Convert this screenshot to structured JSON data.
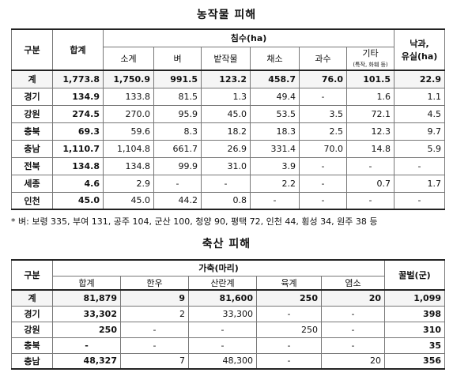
{
  "crop": {
    "title": "농작물 피해",
    "headers": {
      "region": "구분",
      "total": "합계",
      "flood": "침수(ha)",
      "subtotal": "소계",
      "rice": "벼",
      "field": "밭작물",
      "vegetable": "채소",
      "fruit": "과수",
      "etc": "기타",
      "etc_sub": "(특작, 화훼 등)",
      "fall": "낙과,",
      "fall2": "유실(ha)"
    },
    "rows": [
      {
        "region": "계",
        "total": "1,773.8",
        "subtotal": "1,750.9",
        "rice": "991.5",
        "field": "123.2",
        "vegetable": "458.7",
        "fruit": "76.0",
        "etc": "101.5",
        "fall": "22.9"
      },
      {
        "region": "경기",
        "total": "134.9",
        "subtotal": "133.8",
        "rice": "81.5",
        "field": "1.3",
        "vegetable": "49.4",
        "fruit": "-",
        "etc": "1.6",
        "fall": "1.1"
      },
      {
        "region": "강원",
        "total": "274.5",
        "subtotal": "270.0",
        "rice": "95.9",
        "field": "45.0",
        "vegetable": "53.5",
        "fruit": "3.5",
        "etc": "72.1",
        "fall": "4.5"
      },
      {
        "region": "충북",
        "total": "69.3",
        "subtotal": "59.6",
        "rice": "8.3",
        "field": "18.2",
        "vegetable": "18.3",
        "fruit": "2.5",
        "etc": "12.3",
        "fall": "9.7"
      },
      {
        "region": "충남",
        "total": "1,110.7",
        "subtotal": "1,104.8",
        "rice": "661.7",
        "field": "26.9",
        "vegetable": "331.4",
        "fruit": "70.0",
        "etc": "14.8",
        "fall": "5.9"
      },
      {
        "region": "전북",
        "total": "134.8",
        "subtotal": "134.8",
        "rice": "99.9",
        "field": "31.0",
        "vegetable": "3.9",
        "fruit": "-",
        "etc": "-",
        "fall": "-"
      },
      {
        "region": "세종",
        "total": "4.6",
        "subtotal": "2.9",
        "rice": "-",
        "field": "-",
        "vegetable": "2.2",
        "fruit": "-",
        "etc": "0.7",
        "fall": "1.7"
      },
      {
        "region": "인천",
        "total": "45.0",
        "subtotal": "45.0",
        "rice": "44.2",
        "field": "0.8",
        "vegetable": "-",
        "fruit": "-",
        "etc": "-",
        "fall": "-"
      }
    ],
    "note": "* 벼: 보령 335, 부여 131, 공주 104, 군산 100, 청양 90, 평택 72, 인천 44, 횡성 34, 원주 38 등"
  },
  "livestock": {
    "title": "축산 피해",
    "headers": {
      "region": "구분",
      "animals": "가축(마리)",
      "total": "합계",
      "hanwoo": "한우",
      "spawn": "산란계",
      "broiler": "육계",
      "goat": "염소",
      "bee": "꿀벌(군)"
    },
    "rows": [
      {
        "region": "계",
        "total": "81,879",
        "hanwoo": "9",
        "spawn": "81,600",
        "broiler": "250",
        "goat": "20",
        "bee": "1,099"
      },
      {
        "region": "경기",
        "total": "33,302",
        "hanwoo": "2",
        "spawn": "33,300",
        "broiler": "-",
        "goat": "-",
        "bee": "398"
      },
      {
        "region": "강원",
        "total": "250",
        "hanwoo": "-",
        "spawn": "-",
        "broiler": "250",
        "goat": "-",
        "bee": "310"
      },
      {
        "region": "충북",
        "total": "-",
        "hanwoo": "-",
        "spawn": "-",
        "broiler": "-",
        "goat": "-",
        "bee": "35"
      },
      {
        "region": "충남",
        "total": "48,327",
        "hanwoo": "7",
        "spawn": "48,300",
        "broiler": "-",
        "goat": "20",
        "bee": "356"
      }
    ]
  }
}
